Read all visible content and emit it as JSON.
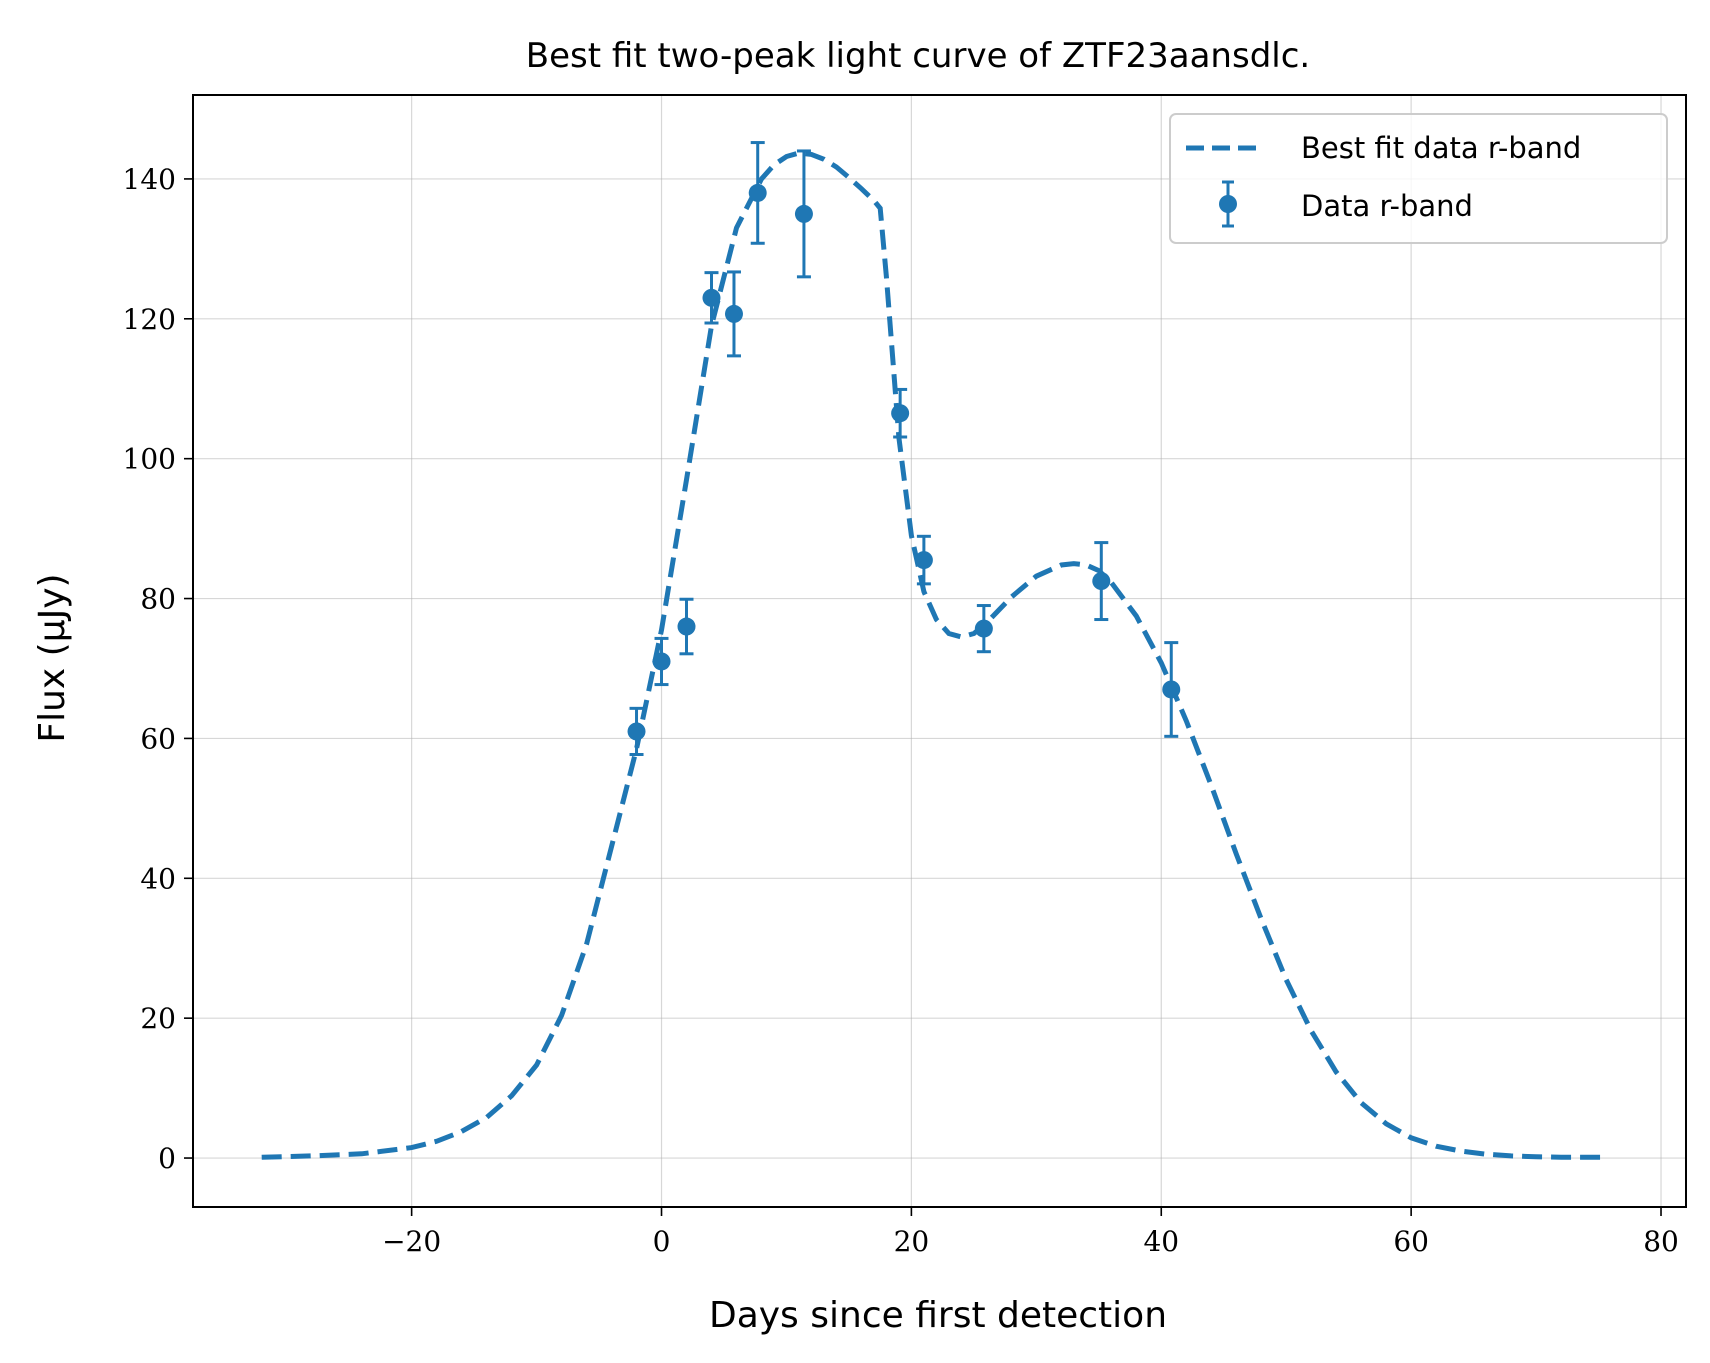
{
  "chart_data": {
    "type": "line",
    "title": "Best fit two-peak light curve of ZTF23aansdlc.",
    "xlabel": "Days since first detection",
    "ylabel": "Flux (μJy)",
    "xlim": [
      -37.5,
      82
    ],
    "ylim": [
      -7,
      152
    ],
    "x_ticks": [
      -20,
      0,
      20,
      40,
      60,
      80
    ],
    "x_tick_labels": [
      "−20",
      "0",
      "20",
      "40",
      "60",
      "80"
    ],
    "y_ticks": [
      0,
      20,
      40,
      60,
      80,
      100,
      120,
      140
    ],
    "y_tick_labels": [
      "0",
      "20",
      "40",
      "60",
      "80",
      "100",
      "120",
      "140"
    ],
    "grid": true,
    "legend_position": "top-right",
    "color": "#1f77b4",
    "series": [
      {
        "name": "Best fit data r-band",
        "kind": "dashed-line",
        "x": [
          -32,
          -28,
          -24,
          -20,
          -18,
          -16,
          -14,
          -12,
          -10,
          -8,
          -6,
          -4,
          -2,
          0,
          2,
          4,
          6,
          8,
          9,
          10,
          11,
          12,
          13,
          14,
          15,
          16,
          17,
          17.5,
          18,
          19,
          20,
          21,
          22,
          23,
          24,
          25,
          26,
          28,
          30,
          32,
          33,
          34,
          35,
          36,
          38,
          40,
          42,
          44,
          46,
          48,
          50,
          52,
          54,
          56,
          58,
          60,
          62,
          64,
          66,
          68,
          70,
          72,
          74,
          75.5
        ],
        "y": [
          0.1,
          0.3,
          0.6,
          1.5,
          2.4,
          3.8,
          5.8,
          8.9,
          13.3,
          20.4,
          30.6,
          44.5,
          58.5,
          75.5,
          97,
          119,
          133,
          140,
          142,
          143.2,
          143.7,
          143.5,
          142.8,
          141.7,
          140.2,
          138.6,
          136.9,
          135.8,
          126,
          103,
          89,
          81,
          77,
          75,
          74.5,
          75,
          76.5,
          80.2,
          83.2,
          84.8,
          85,
          84.8,
          84,
          82.3,
          77.5,
          70.8,
          62.5,
          53.3,
          43.5,
          34.2,
          25.5,
          18.2,
          12.3,
          7.9,
          4.9,
          2.9,
          1.7,
          1,
          0.55,
          0.3,
          0.18,
          0.12,
          0.1,
          0.1
        ]
      },
      {
        "name": "Data r-band",
        "kind": "errorbar",
        "points": [
          {
            "x": -2,
            "y": 61,
            "err": 3.3
          },
          {
            "x": 0,
            "y": 71,
            "err": 3.3
          },
          {
            "x": 2,
            "y": 76,
            "err": 3.9
          },
          {
            "x": 4,
            "y": 123,
            "err": 3.6
          },
          {
            "x": 5.8,
            "y": 120.7,
            "err": 6.0
          },
          {
            "x": 7.7,
            "y": 138,
            "err": 7.2
          },
          {
            "x": 11.4,
            "y": 135,
            "err": 9.0
          },
          {
            "x": 19.1,
            "y": 106.5,
            "err": 3.4
          },
          {
            "x": 21,
            "y": 85.5,
            "err": 3.4
          },
          {
            "x": 25.8,
            "y": 75.7,
            "err": 3.3
          },
          {
            "x": 35.2,
            "y": 82.5,
            "err": 5.5
          },
          {
            "x": 40.8,
            "y": 67,
            "err": 6.7
          }
        ]
      }
    ]
  }
}
